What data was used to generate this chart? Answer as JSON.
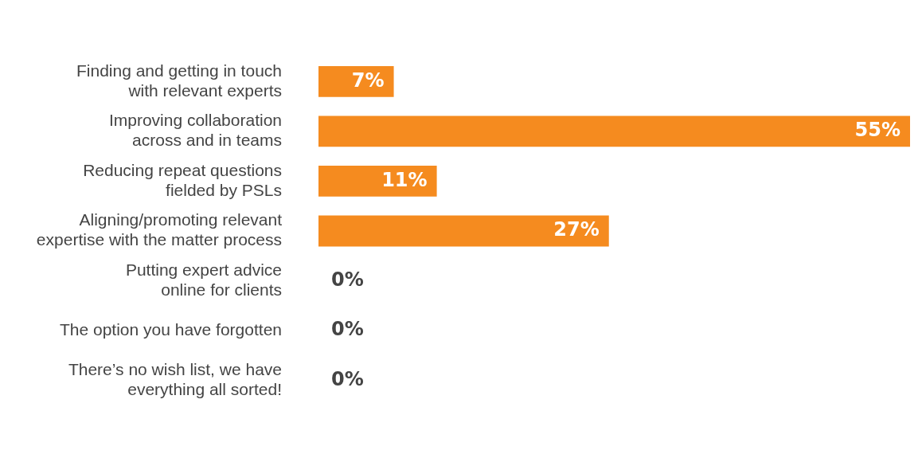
{
  "chart_data": {
    "type": "bar",
    "orientation": "horizontal",
    "categories": [
      "Finding and getting in touch\nwith relevant experts",
      "Improving collaboration\nacross and in teams",
      "Reducing repeat questions\nfielded by PSLs",
      "Aligning/promoting relevant\nexpertise with the matter process",
      "Putting expert advice\nonline for clients",
      "The option you have forgotten",
      "There’s no wish list, we have\neverything all sorted!"
    ],
    "values": [
      7,
      55,
      11,
      27,
      0,
      0,
      0
    ],
    "value_labels": [
      "7%",
      "55%",
      "11%",
      "27%",
      "0%",
      "0%",
      "0%"
    ],
    "color": "#f58b1f",
    "tick_labels": "y",
    "legend": false
  }
}
